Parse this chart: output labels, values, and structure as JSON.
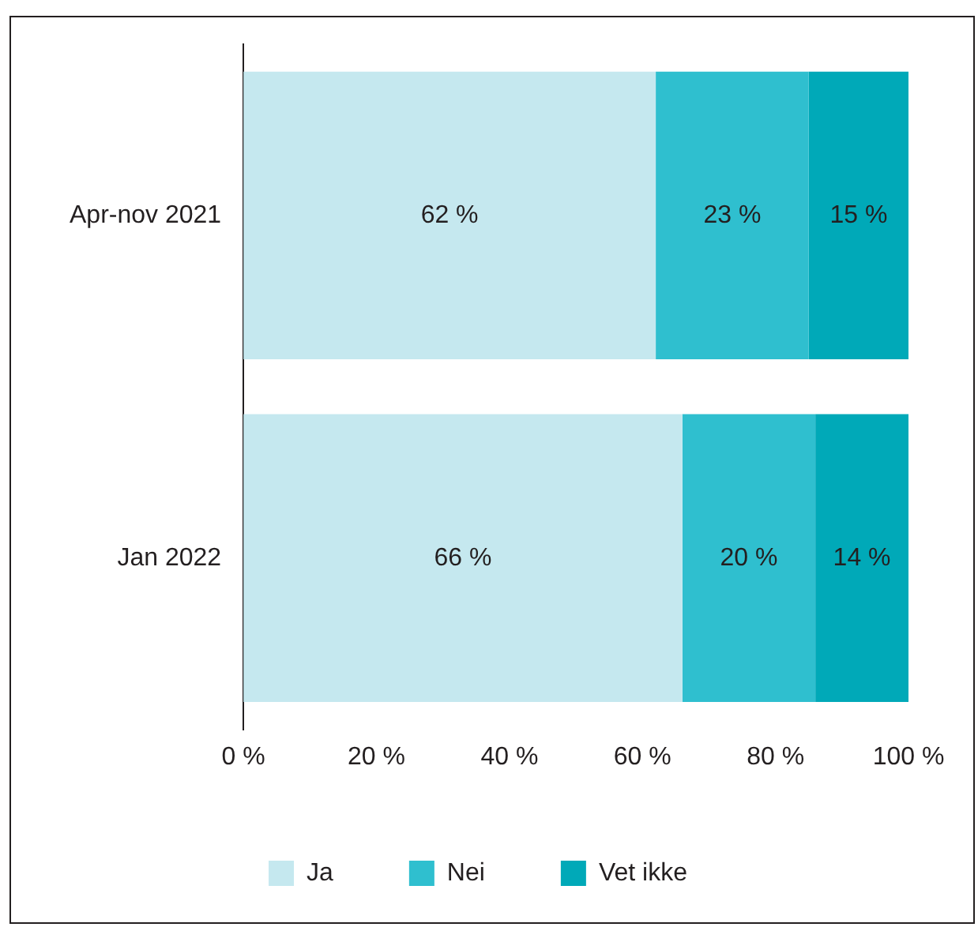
{
  "chart_data": {
    "type": "bar",
    "orientation": "horizontal",
    "stacked": true,
    "categories": [
      "Apr-nov 2021",
      "Jan 2022"
    ],
    "series": [
      {
        "name": "Ja",
        "color": "#c5e8ef",
        "values": [
          62,
          66
        ],
        "value_labels": [
          "62 %",
          "66 %"
        ]
      },
      {
        "name": "Nei",
        "color": "#2fbfcf",
        "values": [
          23,
          20
        ],
        "value_labels": [
          "23 %",
          "20 %"
        ]
      },
      {
        "name": "Vet ikke",
        "color": "#00a9b8",
        "values": [
          15,
          14
        ],
        "value_labels": [
          "15 %",
          "14 %"
        ]
      }
    ],
    "xlim": [
      0,
      100
    ],
    "xticks": [
      {
        "value": 0,
        "label": "0 %"
      },
      {
        "value": 20,
        "label": "20 %"
      },
      {
        "value": 40,
        "label": "40 %"
      },
      {
        "value": 60,
        "label": "60 %"
      },
      {
        "value": 80,
        "label": "80 %"
      },
      {
        "value": 100,
        "label": "100 %"
      }
    ],
    "grid": false,
    "legend": "bottom"
  }
}
